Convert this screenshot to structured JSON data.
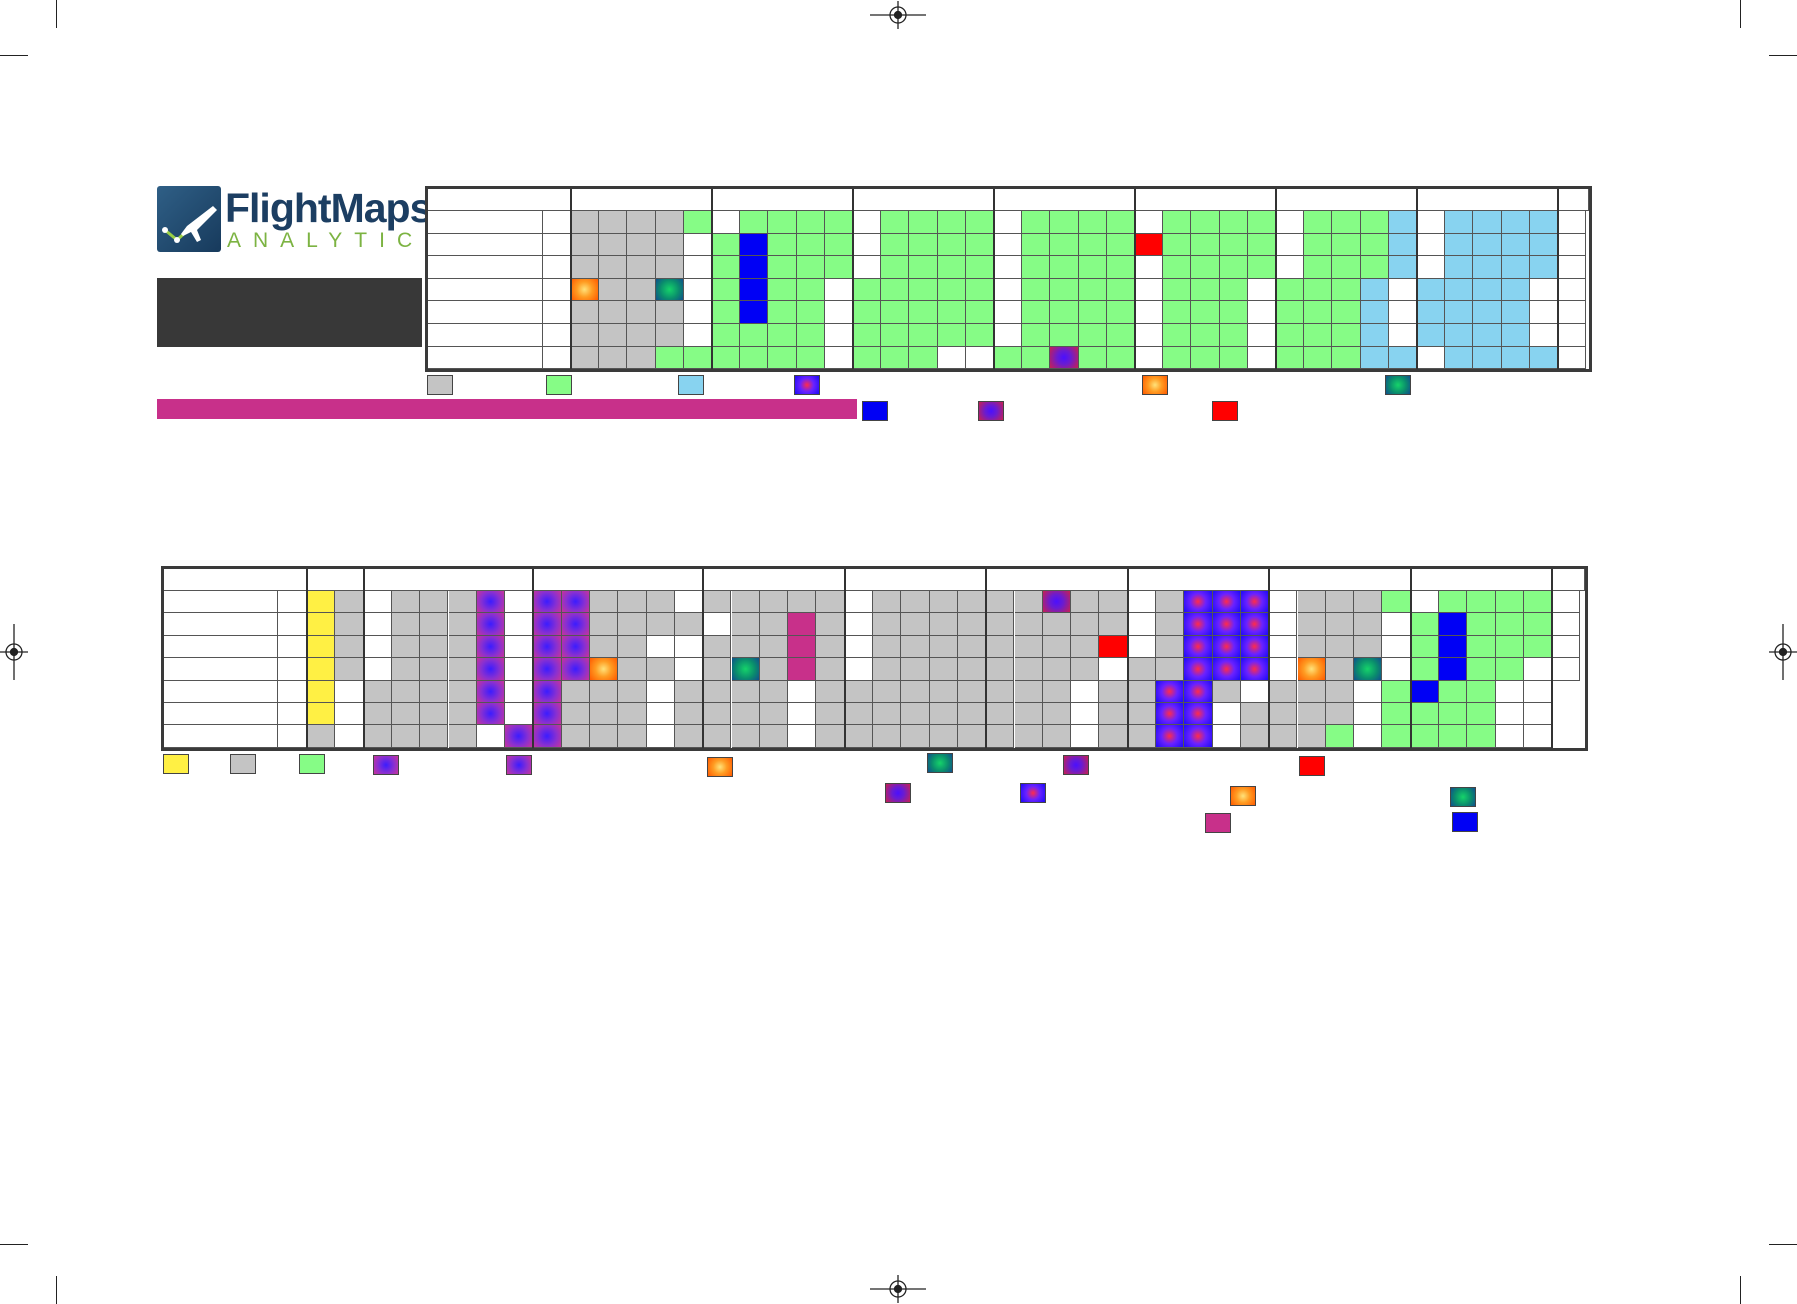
{
  "brand": {
    "name": "FlightMaps",
    "tagline": "ANALYTICS"
  },
  "colors": {
    "grey": "#c4c4c4",
    "light_green": "#86fc86",
    "light_blue": "#88d3f0",
    "yellow": "#fff044",
    "magenta": "#c8308a",
    "blue": "#0000f5",
    "red": "#ff0000"
  },
  "grid1": {
    "legend_row1": [
      "g",
      "l",
      "b",
      "p",
      "o",
      "t"
    ],
    "legend_row2": [
      "u",
      "d",
      "r"
    ],
    "rows": [
      "ww.ggggl.wllll.wllll.wllll.wllll.wlllb.wbbbb.w",
      "ww.ggggw.lulll.wllll.wllll.rllll.wlllb.wbbbb.w",
      "ww.ggggw.lulll.wllll.wllll.wllll.wlllb.wbbbb.w",
      "ww.oggtw.lullw.lllll.wllll.wlllw.lllbw.bbbbw.w",
      "ww.ggggw.lullw.lllll.wllll.wlllw.lllbw.bbbbw.w",
      "ww.ggggw.llllw.lllll.wllll.wlllw.lllbw.bbbbw.w",
      "ww.gggll.llllw.lllww.lldll.wlllw.lllbb.wbbbb.w"
    ]
  },
  "grid2": {
    "legend_row1": [
      "y",
      "g",
      "l",
      "q",
      "q",
      "o",
      "t",
      "d",
      "r"
    ],
    "legend_row2": [
      "d",
      "p",
      "o",
      "t"
    ],
    "legend_row3": [
      "m",
      "u"
    ],
    "rows": [
      "ww.yg.wgggqw.qqgggw.ggggg.wgggg.ggdgg.wgppp.wgggl.wllll.w",
      "ww.yg.wgggqw.qqgggg.wggmg.wgggg.ggggg.wgppp.wgggw.lulll.w",
      "ww.yg.wgggqw.qqggww.gggmg.wgggg.ggggr.wgppp.wgggw.lulll.w",
      "ww.yg.wgggqw.qqoggw.gtgmg.wgggg.ggggw.ggppp.wogtw.lullw.w",
      "ww.yw.ggggqw.qgggw.ggggw.ggggg.ggggw.ggppg.wgggw.lullw.w",
      "ww.yw.ggggqw.qgggw.ggggw.ggggg.ggggw.ggppw.ggggw.llllw.w",
      "ww.gw.ggggwq.qgggw.ggggw.ggggg.ggggw.ggppw.ggglw.llllw.w"
    ]
  }
}
